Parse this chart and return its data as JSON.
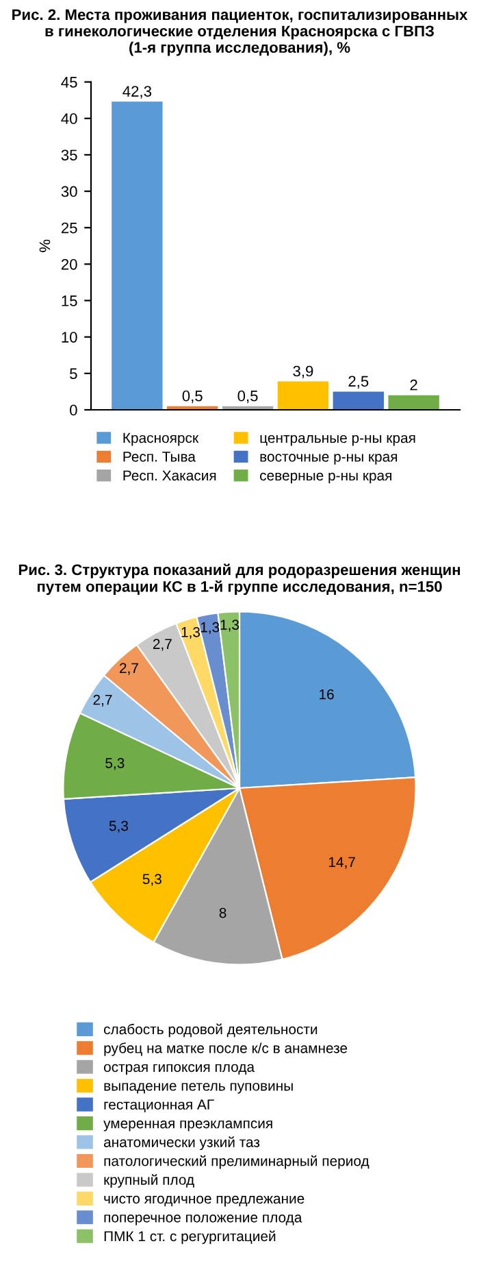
{
  "chart_data": [
    {
      "type": "bar",
      "title": "Рис. 2. Места проживания пациенток, госпитализированных\nв гинекологические отделения Красноярска с ГВПЗ\n(1-я группа исследования), %",
      "ylabel": "%",
      "categories": [
        null
      ],
      "series": [
        {
          "name": "Красноярск",
          "color": "#5b9bd5",
          "values": [
            42.3
          ],
          "value_labels": [
            "42,3"
          ]
        },
        {
          "name": "Респ. Тыва",
          "color": "#ed7d31",
          "values": [
            0.5
          ],
          "value_labels": [
            "0,5"
          ]
        },
        {
          "name": "Респ. Хакасия",
          "color": "#a5a5a5",
          "values": [
            0.5
          ],
          "value_labels": [
            "0,5"
          ]
        },
        {
          "name": "центральные р-ны края",
          "color": "#ffc000",
          "values": [
            3.9
          ],
          "value_labels": [
            "3,9"
          ]
        },
        {
          "name": "восточные р-ны края",
          "color": "#4472c4",
          "values": [
            2.5
          ],
          "value_labels": [
            "2,5"
          ]
        },
        {
          "name": "северные р-ны края",
          "color": "#70ad47",
          "values": [
            2
          ],
          "value_labels": [
            "2"
          ]
        }
      ],
      "ylim": [
        0,
        45
      ],
      "yticks": [
        0,
        5,
        10,
        15,
        20,
        25,
        30,
        35,
        40,
        45
      ],
      "tick_labels": "y",
      "legend": "bottom",
      "grid": false
    },
    {
      "type": "pie",
      "title": "Рис. 3. Структура показаний для родоразрешения женщин\nпутем операции КС в 1-й группе исследования, n=150",
      "categories": [
        "слабость родовой деятельности",
        "рубец на матке после к/с в анамнезе",
        "острая гипоксия плода",
        "выпадение петель пуповины",
        "гестационная АГ",
        "умеренная преэклампсия",
        "анатомически узкий таз",
        "патологический прелиминарный период",
        "крупный плод",
        "чисто ягодичное предлежание",
        "поперечное положение плода",
        "ПМК 1 ст. с регургитацией"
      ],
      "values": [
        16,
        14.7,
        8,
        5.3,
        5.3,
        5.3,
        2.7,
        2.7,
        2.7,
        1.3,
        1.3,
        1.3
      ],
      "value_labels": [
        "16",
        "14,7",
        "8",
        "5,3",
        "5,3",
        "5,3",
        "2,7",
        "2,7",
        "2,7",
        "1,3",
        "1,3",
        "1,3"
      ],
      "colors": [
        "#5b9bd5",
        "#ed7d31",
        "#a5a5a5",
        "#ffc000",
        "#4472c4",
        "#70ad47",
        "#9dc3e6",
        "#f1975a",
        "#c9c9c9",
        "#ffd966",
        "#698ed0",
        "#8cc168"
      ],
      "legend": "bottom"
    }
  ]
}
